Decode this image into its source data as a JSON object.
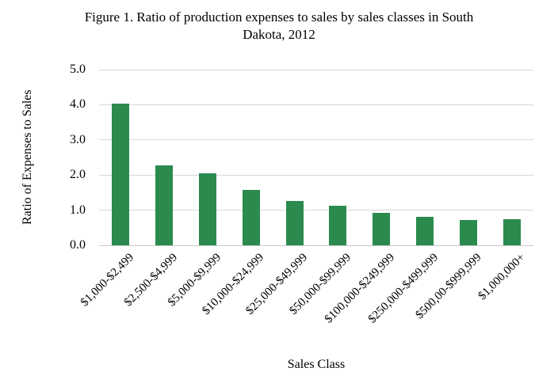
{
  "figure": {
    "title_line1": "Figure 1. Ratio of production expenses to sales by sales classes in South",
    "title_line2": "Dakota, 2012"
  },
  "chart_data": {
    "type": "bar",
    "title": "Figure 1. Ratio of production expenses to sales by sales classes in South Dakota, 2012",
    "categories": [
      "$1,000-$2,499",
      "$2,500-$4,999",
      "$5,000-$9,999",
      "$10,000-$24,999",
      "$25,000-$49,999",
      "$50,000-$99,999",
      "$100,000-$249,999",
      "$250,000-$499,999",
      "$500,00-$999,999",
      "$1,000,000+"
    ],
    "values": [
      4.03,
      2.28,
      2.04,
      1.57,
      1.27,
      1.13,
      0.93,
      0.82,
      0.72,
      0.74
    ],
    "xlabel": "Sales Class",
    "ylabel": "Ratio of Expenses to Sales",
    "ylim": [
      0,
      5
    ],
    "ytick_labels": [
      "0.0",
      "1.0",
      "2.0",
      "3.0",
      "4.0",
      "5.0"
    ],
    "grid": "horizontal",
    "legend": "none",
    "bar_color": "#2b8a4e",
    "gridline_color": "#d9d9d9",
    "background_color": "#ffffff",
    "text_color": "#000000"
  }
}
